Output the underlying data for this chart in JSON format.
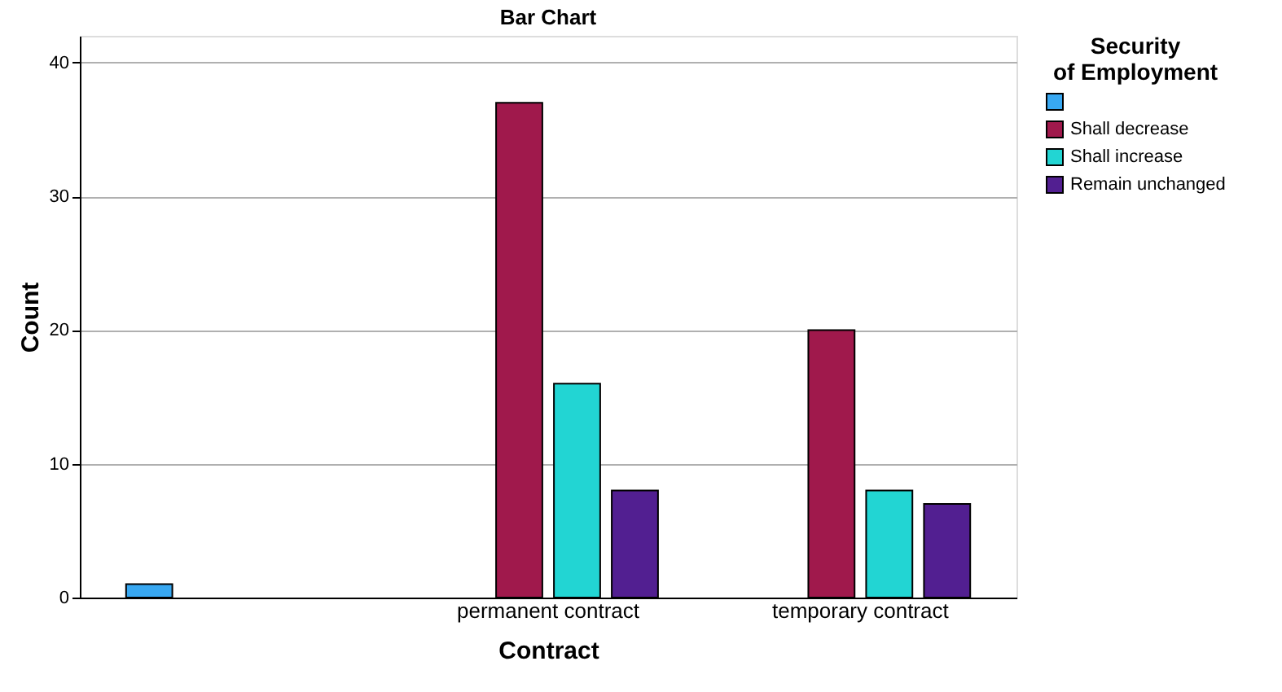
{
  "chart_data": {
    "type": "bar",
    "title": "Bar Chart",
    "xlabel": "Contract",
    "ylabel": "Count",
    "legend_title": "Security of Employment",
    "categories": [
      null,
      "permanent contract",
      "temporary contract"
    ],
    "series": [
      {
        "color": "#38a8f2",
        "values": [
          1,
          null,
          null
        ]
      },
      {
        "name": "Shall decrease",
        "color": "#a0194c",
        "values": [
          null,
          37,
          20
        ]
      },
      {
        "name": "Shall increase",
        "color": "#22d5d3",
        "values": [
          null,
          16,
          8
        ]
      },
      {
        "name": "Remain unchanged",
        "color": "#521f91",
        "values": [
          null,
          8,
          7
        ]
      }
    ],
    "ylim": [
      0,
      42
    ],
    "yticks": [
      0,
      10,
      20,
      30,
      40
    ],
    "grid": "y",
    "legend": "top right"
  }
}
